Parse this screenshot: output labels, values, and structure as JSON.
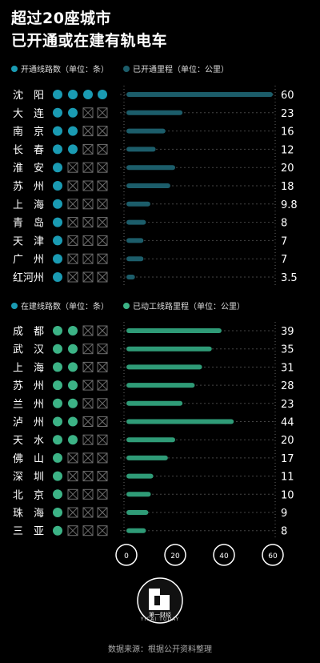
{
  "header": {
    "title_line1": "超过20座城市",
    "title_line2": "已开通或在建有轨电车"
  },
  "legend_top": {
    "dots_label": "开通线路数（单位：条）",
    "bars_label": "已开通里程（单位：公里）"
  },
  "legend_bottom": {
    "dots_label": "在建线路数（单位：条）",
    "bars_label": "已动工线路里程（单位：公里）"
  },
  "colors": {
    "opened": "#1a9bb3",
    "opened_bar": "#1c5d6a",
    "building": "#3cb386",
    "building_bar": "#2f9b77",
    "cross_box": "#6e6e6e"
  },
  "chart_data": [
    {
      "type": "bar",
      "orientation": "horizontal",
      "categories": [
        "沈阳",
        "大连",
        "南京",
        "长春",
        "淮安",
        "苏州",
        "上海",
        "青岛",
        "天津",
        "广州",
        "红河州"
      ],
      "category_labels": [
        "沈　阳",
        "大　连",
        "南　京",
        "长　春",
        "淮　安",
        "苏　州",
        "上　海",
        "青　岛",
        "天　津",
        "广　州",
        "红河州"
      ],
      "series": [
        {
          "name": "开通线路数（单位：条）",
          "values": [
            4,
            2,
            2,
            2,
            1,
            1,
            1,
            1,
            1,
            1,
            1
          ]
        },
        {
          "name": "已开通里程（单位：公里）",
          "values": [
            60,
            23,
            16,
            12,
            20,
            18,
            9.8,
            8,
            7,
            7,
            3.5
          ]
        }
      ],
      "value_labels": [
        "60",
        "23",
        "16",
        "12",
        "20",
        "18",
        "9.8",
        "8",
        "7",
        "7",
        "3.5"
      ],
      "xlim": [
        0,
        60
      ]
    },
    {
      "type": "bar",
      "orientation": "horizontal",
      "categories": [
        "成都",
        "武汉",
        "上海",
        "苏州",
        "兰州",
        "泸州",
        "天水",
        "佛山",
        "深圳",
        "北京",
        "珠海",
        "三亚"
      ],
      "category_labels": [
        "成　都",
        "武　汉",
        "上　海",
        "苏　州",
        "兰　州",
        "泸　州",
        "天　水",
        "佛　山",
        "深　圳",
        "北　京",
        "珠　海",
        "三　亚"
      ],
      "series": [
        {
          "name": "在建线路数（单位：条）",
          "values": [
            2,
            2,
            2,
            2,
            2,
            2,
            2,
            1,
            1,
            1,
            1,
            1
          ]
        },
        {
          "name": "已动工线路里程（单位：公里）",
          "values": [
            39,
            35,
            31,
            28,
            23,
            44,
            20,
            17,
            11,
            10,
            9,
            8
          ]
        }
      ],
      "value_labels": [
        "39",
        "35",
        "31",
        "28",
        "23",
        "44",
        "20",
        "17",
        "11",
        "10",
        "9",
        "8"
      ],
      "xlim": [
        0,
        60
      ],
      "x_ticks": [
        "0",
        "20",
        "40",
        "60"
      ]
    }
  ],
  "logo": {
    "text": "第一财经",
    "small_text": "YICAI TODAY"
  },
  "footer": {
    "source": "数据来源：根据公开资料整理"
  }
}
